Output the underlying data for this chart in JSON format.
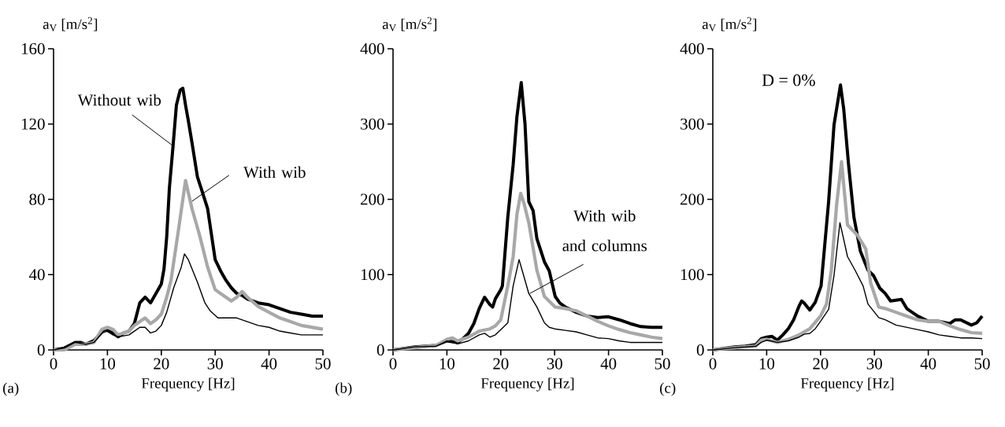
{
  "chart_data": [
    {
      "type": "line",
      "xlabel": "Frequency [Hz]",
      "ylabel": "a$_{V}$ [m/s$^{2}$]",
      "xlim": [
        0,
        50
      ],
      "xticks": [
        0,
        10,
        20,
        30,
        40,
        50
      ],
      "ylim": [
        0,
        160
      ],
      "yticks": [
        0,
        40,
        80,
        120,
        160
      ],
      "series": [
        {
          "color": "#000000",
          "x": [
            0,
            2,
            4,
            5,
            6,
            7.5,
            9.5,
            11,
            12,
            13,
            14,
            15,
            16,
            17,
            18,
            19,
            20,
            20.5,
            21,
            21.5,
            22.2,
            22.8,
            23.5,
            24,
            24.5,
            25,
            25.7,
            26.7,
            27.5,
            28.6,
            30,
            31,
            32,
            33,
            34,
            35,
            36,
            38,
            40,
            42,
            44,
            46,
            48,
            50
          ],
          "values": [
            0,
            1,
            4,
            4,
            3,
            5,
            11,
            9,
            7,
            9,
            10,
            14,
            25,
            28,
            25,
            30,
            35,
            43,
            60,
            86,
            109,
            130,
            138,
            139,
            130,
            122,
            110,
            92,
            85,
            75,
            48,
            42,
            37,
            33,
            30,
            29,
            27,
            25,
            24,
            22,
            20,
            19,
            18,
            18
          ]
        },
        {
          "color": "#a8a8a8",
          "x": [
            0,
            2,
            4,
            6,
            7.5,
            9,
            10,
            11,
            12,
            14,
            15,
            16,
            17,
            18,
            19,
            20,
            21,
            21.8,
            23.2,
            24.5,
            25.7,
            27.1,
            28.6,
            30,
            31,
            32,
            33,
            34,
            35,
            36,
            38,
            40,
            42,
            44,
            46,
            48,
            50
          ],
          "values": [
            0,
            0,
            3,
            3,
            4,
            11,
            12,
            11,
            8,
            10,
            13,
            15,
            17,
            14,
            16,
            19,
            28,
            37,
            64,
            90,
            75,
            61,
            44,
            32,
            30,
            28,
            26,
            28,
            31,
            28,
            23,
            20,
            17,
            15,
            13,
            12,
            11
          ]
        },
        {
          "color": "#000000",
          "x": [
            0,
            2,
            4,
            6,
            7.5,
            9,
            10,
            11,
            12,
            14,
            15,
            16,
            17,
            18,
            19,
            20,
            21,
            22.3,
            23.7,
            24.3,
            25,
            26.7,
            28.1,
            29,
            30.5,
            32,
            34,
            36,
            38,
            40,
            42,
            44,
            46,
            48,
            50
          ],
          "values": [
            0,
            1,
            4,
            3,
            4,
            9,
            10,
            8,
            7,
            8,
            10,
            12,
            12,
            9,
            10,
            13,
            20,
            33,
            44,
            51,
            48,
            36,
            25,
            21,
            17,
            17,
            17,
            15,
            13,
            12,
            10,
            9,
            8,
            8,
            8
          ]
        }
      ],
      "annotations": [
        "(a)",
        {
          "text": "Without wib",
          "x": 21.9,
          "y": 109
        },
        {
          "text": "With wib",
          "x": 25.7,
          "y": 79
        }
      ]
    },
    {
      "type": "line",
      "xlabel": "Frequency [Hz]",
      "ylabel": "a$_{V}$ [m/s$^{2}$]",
      "xlim": [
        0,
        50
      ],
      "xticks": [
        0,
        10,
        20,
        30,
        40,
        50
      ],
      "ylim": [
        0,
        400
      ],
      "yticks": [
        0,
        100,
        200,
        300,
        400
      ],
      "series": [
        {
          "color": "#000000",
          "x": [
            0,
            4,
            8,
            10,
            12,
            13,
            14,
            15,
            16,
            17,
            18,
            18.5,
            19,
            20,
            20.3,
            21.3,
            22.3,
            23,
            23.8,
            24.5,
            25.2,
            26,
            26.7,
            28.1,
            29,
            30.1,
            31,
            32,
            34,
            36,
            38,
            40,
            42,
            44,
            46,
            48,
            50
          ],
          "values": [
            0,
            4,
            6,
            12,
            10,
            15,
            22,
            35,
            55,
            70,
            60,
            57,
            68,
            80,
            85,
            176,
            246,
            310,
            355,
            300,
            197,
            185,
            148,
            117,
            105,
            71,
            62,
            57,
            50,
            45,
            43,
            44,
            40,
            35,
            31,
            30,
            30
          ]
        },
        {
          "color": "#a8a8a8",
          "x": [
            0,
            4,
            8,
            10,
            11,
            12,
            14,
            16,
            18,
            19,
            20,
            21.3,
            22.3,
            23,
            23.7,
            24.3,
            25.2,
            26.7,
            28.1,
            30.1,
            32,
            34,
            36,
            38,
            40,
            42,
            44,
            46,
            48,
            50
          ],
          "values": [
            0,
            3,
            6,
            14,
            16,
            12,
            17,
            25,
            28,
            32,
            40,
            85,
            124,
            180,
            208,
            195,
            169,
            106,
            71,
            57,
            55,
            52,
            45,
            38,
            32,
            27,
            23,
            20,
            17,
            15
          ]
        },
        {
          "color": "#000000",
          "x": [
            0,
            4,
            8,
            10,
            12,
            14,
            16,
            17,
            18,
            19,
            20,
            21.3,
            22.3,
            23.4,
            24,
            25.2,
            26.7,
            28.1,
            29,
            30,
            32,
            34,
            36,
            38,
            40,
            42,
            44,
            46,
            48,
            50
          ],
          "values": [
            0,
            4,
            5,
            12,
            8,
            12,
            20,
            22,
            17,
            20,
            27,
            36,
            85,
            120,
            105,
            75,
            57,
            36,
            30,
            28,
            26,
            24,
            20,
            16,
            15,
            12,
            10,
            10,
            10,
            10
          ]
        }
      ],
      "annotations": [
        "(b)",
        {
          "text": "With wib and columns",
          "x": 25.4,
          "y": 75
        }
      ]
    },
    {
      "type": "line",
      "xlabel": "Frequency [Hz]",
      "ylabel": "a$_{V}$ [m/s$^{2}$]",
      "xlim": [
        0,
        50
      ],
      "xticks": [
        0,
        10,
        20,
        30,
        40,
        50
      ],
      "ylim": [
        0,
        400
      ],
      "yticks": [
        0,
        100,
        200,
        300,
        400
      ],
      "series": [
        {
          "color": "#000000",
          "x": [
            0,
            4,
            6,
            8,
            9,
            10,
            11,
            12,
            13,
            14,
            15,
            16,
            16.5,
            17,
            18,
            19,
            20.1,
            21.5,
            22.5,
            23.7,
            24.3,
            25.2,
            26.2,
            27.4,
            28.8,
            29.8,
            31,
            32,
            33,
            34,
            35,
            36,
            38,
            40,
            42,
            44,
            45,
            46,
            48,
            49,
            50
          ],
          "values": [
            0,
            4,
            5,
            7,
            15,
            17,
            18,
            13,
            20,
            28,
            40,
            58,
            65,
            62,
            53,
            63,
            85,
            197,
            299,
            352,
            320,
            246,
            176,
            131,
            106,
            99,
            82,
            75,
            65,
            66,
            67,
            55,
            45,
            38,
            38,
            35,
            40,
            40,
            33,
            36,
            45
          ]
        },
        {
          "color": "#a8a8a8",
          "x": [
            0,
            4,
            8,
            9,
            10,
            12,
            14,
            16,
            18,
            20,
            21.1,
            22,
            23,
            23.9,
            25,
            26.9,
            28.4,
            29.3,
            30.8,
            32,
            34,
            36,
            38,
            40,
            42,
            44,
            46,
            48,
            50
          ],
          "values": [
            0,
            3,
            5,
            13,
            14,
            10,
            14,
            20,
            28,
            45,
            61,
            106,
            194,
            250,
            166,
            152,
            134,
            89,
            57,
            55,
            50,
            45,
            40,
            38,
            38,
            32,
            27,
            23,
            22
          ]
        },
        {
          "color": "#000000",
          "x": [
            0,
            4,
            8,
            9,
            10,
            12,
            14,
            16,
            17,
            18,
            19,
            20,
            21.5,
            22.5,
            23.6,
            24.2,
            25,
            26.4,
            27.9,
            28.8,
            30.8,
            32,
            34,
            36,
            38,
            40,
            42,
            44,
            46,
            48,
            50
          ],
          "values": [
            0,
            3,
            5,
            10,
            13,
            10,
            12,
            17,
            21,
            22,
            28,
            38,
            54,
            99,
            169,
            150,
            124,
            106,
            85,
            61,
            43,
            40,
            33,
            30,
            27,
            24,
            20,
            18,
            16,
            16,
            15
          ]
        }
      ],
      "annotations": [
        "(c)",
        "D = 0%"
      ]
    }
  ]
}
